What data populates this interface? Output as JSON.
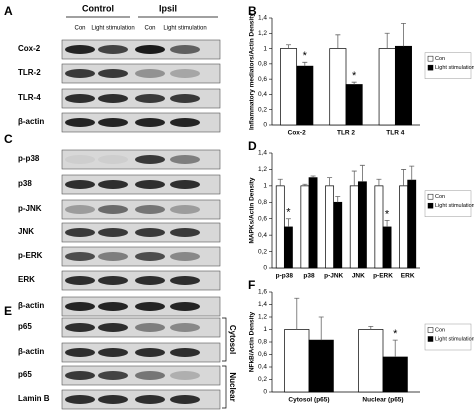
{
  "blots": {
    "panels": [
      {
        "letter": "A",
        "groups": [
          "Control",
          "Ipsil"
        ],
        "lanes": [
          "Con",
          "Light stimulation"
        ],
        "rows": [
          "Cox-2",
          "TLR-2",
          "TLR-4",
          "β-actin"
        ]
      },
      {
        "letter": "C",
        "rows": [
          "p-p38",
          "p38",
          "p-JNK",
          "JNK",
          "p-ERK",
          "ERK",
          "β-actin"
        ]
      },
      {
        "letter": "E",
        "rows": [
          "p65",
          "β-actin",
          "p65",
          "Lamin B"
        ],
        "fractions": [
          "Cytosol",
          "Nuclear"
        ]
      }
    ]
  },
  "chart_data": [
    {
      "type": "bar",
      "panel": "B",
      "y_label": "Inflammatory mediators/Actin Density",
      "categories": [
        "Cox-2",
        "TLR 2",
        "TLR 4"
      ],
      "series": [
        {
          "name": "Con",
          "color": "#ffffff",
          "values": [
            1.0,
            1.0,
            1.0
          ],
          "errors": [
            0.05,
            0.18,
            0.2
          ]
        },
        {
          "name": "Light stimulation",
          "color": "#000000",
          "values": [
            0.77,
            0.53,
            1.03
          ],
          "errors": [
            0.05,
            0.03,
            0.3
          ]
        }
      ],
      "annotations": [
        {
          "text": "*",
          "category": 0
        },
        {
          "text": "*",
          "category": 1
        }
      ],
      "ylim": [
        0,
        1.4
      ],
      "yticks": [
        0,
        {
          "value": 0.2,
          "label": "0,2"
        },
        {
          "value": 0.4,
          "label": "0,4"
        },
        {
          "value": 0.6,
          "label": "0,6"
        },
        {
          "value": 0.8,
          "label": "0,8"
        },
        1,
        {
          "value": 1.2,
          "label": "1,2"
        },
        {
          "value": 1.4,
          "label": "1,4"
        }
      ]
    },
    {
      "type": "bar",
      "panel": "D",
      "y_label": "MAPKs/Actin Density",
      "categories": [
        "p-p38",
        "p38",
        "p-JNK",
        "JNK",
        "p-ERK",
        "ERK"
      ],
      "series": [
        {
          "name": "Con",
          "color": "#ffffff",
          "values": [
            1.0,
            1.0,
            1.0,
            1.0,
            1.0,
            1.0
          ],
          "errors": [
            0.08,
            0.02,
            0.1,
            0.18,
            0.08,
            0.2
          ]
        },
        {
          "name": "Light stimulation",
          "color": "#000000",
          "values": [
            0.5,
            1.1,
            0.8,
            1.05,
            0.5,
            1.07
          ],
          "errors": [
            0.1,
            0.02,
            0.07,
            0.2,
            0.08,
            0.17
          ]
        }
      ],
      "annotations": [
        {
          "text": "*",
          "category": 0
        },
        {
          "text": "*",
          "category": 4
        }
      ],
      "ylim": [
        0,
        1.4
      ],
      "yticks": [
        0,
        {
          "value": 0.2,
          "label": "0,2"
        },
        {
          "value": 0.4,
          "label": "0,4"
        },
        {
          "value": 0.6,
          "label": "0,6"
        },
        {
          "value": 0.8,
          "label": "0,8"
        },
        1,
        {
          "value": 1.2,
          "label": "1,2"
        },
        {
          "value": 1.4,
          "label": "1,4"
        }
      ]
    },
    {
      "type": "bar",
      "panel": "F",
      "y_label": "NFkB/Actin Density",
      "categories": [
        "Cytosol (p65)",
        "Nuclear (p65)"
      ],
      "series": [
        {
          "name": "Con",
          "color": "#ffffff",
          "values": [
            1.0,
            1.0
          ],
          "errors": [
            0.5,
            0.05
          ]
        },
        {
          "name": "Light stimulation",
          "color": "#000000",
          "values": [
            0.83,
            0.56
          ],
          "errors": [
            0.37,
            0.27
          ]
        }
      ],
      "annotations": [
        {
          "text": "*",
          "category": 1
        }
      ],
      "ylim": [
        0,
        1.6
      ],
      "yticks": [
        0,
        {
          "value": 0.2,
          "label": "0,2"
        },
        {
          "value": 0.4,
          "label": "0,4"
        },
        {
          "value": 0.6,
          "label": "0,6"
        },
        {
          "value": 0.8,
          "label": "0,8"
        },
        1,
        {
          "value": 1.2,
          "label": "1,2"
        },
        {
          "value": 1.4,
          "label": "1,4"
        },
        {
          "value": 1.6,
          "label": "1,6"
        }
      ]
    }
  ]
}
